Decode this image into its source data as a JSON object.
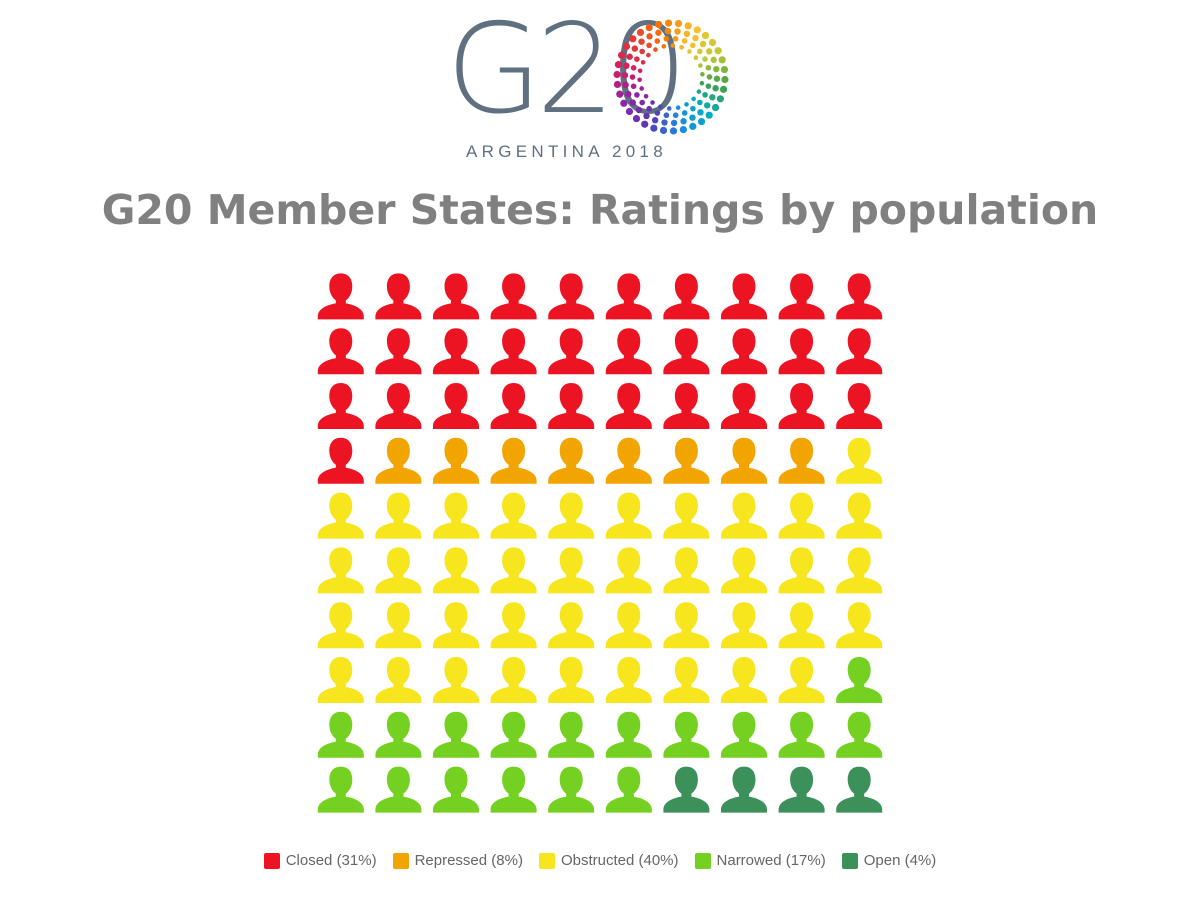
{
  "logo": {
    "wordmark": "G20",
    "subtitle": "ARGENTINA 2018",
    "emblem_icon": "g20-sunburst-dots-icon",
    "colors": {
      "text": "#5f7180",
      "spectrum": [
        "#e53935",
        "#f57c00",
        "#fbc02d",
        "#c0ca33",
        "#43a047",
        "#00acc1",
        "#1e88e5",
        "#5e35b1",
        "#8e24aa",
        "#d81b60"
      ]
    }
  },
  "header": {
    "title": "G20 Member States: Ratings by population"
  },
  "chart_data": {
    "type": "waffle",
    "title": "G20 Member States: Ratings by population",
    "grid": {
      "rows": 10,
      "cols": 10,
      "total": 100
    },
    "icon": "person-icon",
    "fill_order": "row-major from top-left",
    "categories": [
      "Closed",
      "Repressed",
      "Obstructed",
      "Narrowed",
      "Open"
    ],
    "values": [
      31,
      8,
      40,
      17,
      4
    ],
    "unit": "%",
    "colors": [
      "#ec1422",
      "#f2a400",
      "#f7e51e",
      "#74d121",
      "#3c915a"
    ],
    "legend": {
      "placement": "bottom-center",
      "entries": [
        {
          "label": "Closed (31%)",
          "color": "#ec1422"
        },
        {
          "label": "Repressed (8%)",
          "color": "#f2a400"
        },
        {
          "label": "Obstructed (40%)",
          "color": "#f7e51e"
        },
        {
          "label": "Narrowed (17%)",
          "color": "#74d121"
        },
        {
          "label": "Open (4%)",
          "color": "#3c915a"
        }
      ]
    }
  }
}
